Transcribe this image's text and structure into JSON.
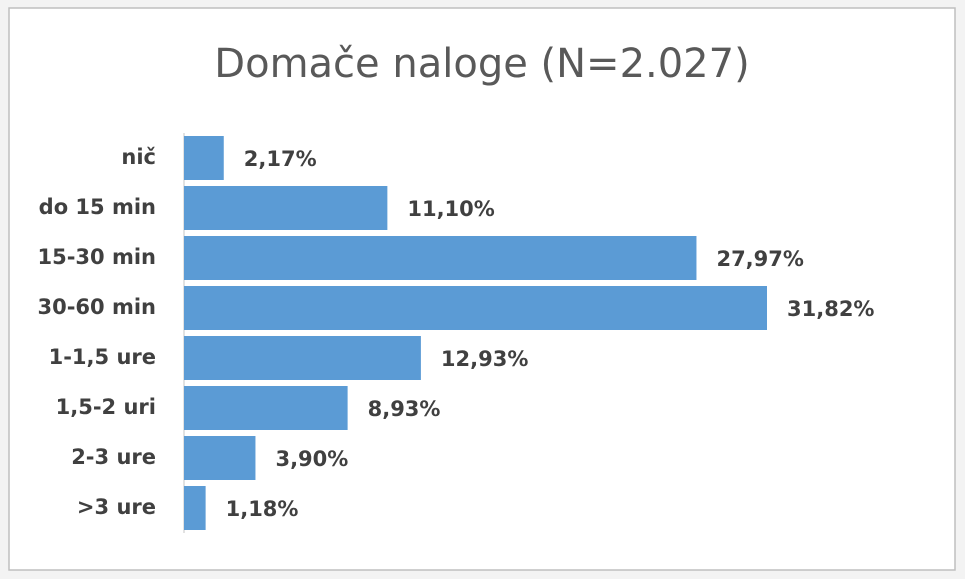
{
  "chart_data": {
    "type": "bar",
    "orientation": "horizontal",
    "title": "Domače naloge (N=2.027)",
    "categories": [
      "nič",
      "do 15 min",
      "15-30 min",
      "30-60 min",
      "1-1,5 ure",
      "1,5-2 uri",
      "2-3 ure",
      ">3 ure"
    ],
    "values": [
      2.17,
      11.1,
      27.97,
      31.82,
      12.93,
      8.93,
      3.9,
      1.18
    ],
    "value_labels": [
      "2,17%",
      "11,10%",
      "27,97%",
      "31,82%",
      "12,93%",
      "8,93%",
      "3,90%",
      "1,18%"
    ],
    "color": "#5b9bd5"
  }
}
